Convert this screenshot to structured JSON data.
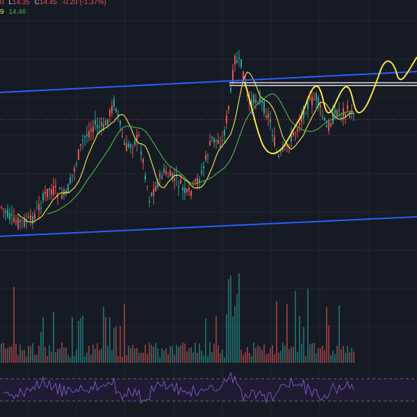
{
  "colors": {
    "background": "#161a25",
    "grid": "#232733",
    "up": "#26a69a",
    "down": "#ef5350",
    "channel": "#2962ff",
    "forecast": "#ffeb3b",
    "ma_fast": "#e6e64a",
    "ma_slow": "#4caf50",
    "level": "#e0e0e0",
    "rsi": "#7e57c2",
    "rsi_band": "#1f1b33",
    "price_line": "#ef5350"
  },
  "legend": {
    "ohlc_tail": "0",
    "low_label": "L",
    "low_value": "14.35",
    "close_label": "C",
    "close_value": "14.45",
    "change": "-0.20 (-1.37%)",
    "ma_tail": "9",
    "ma_value": "14.46"
  },
  "chart_data": {
    "type": "candlestick",
    "panes": [
      "price",
      "volume",
      "rsi"
    ],
    "last_close": 14.45,
    "last_change": -0.2,
    "last_change_pct": -1.37,
    "grid": true,
    "overlays": {
      "channel_lines": 2,
      "horizontal_level": true,
      "projected_path": true,
      "moving_averages": 2
    }
  }
}
